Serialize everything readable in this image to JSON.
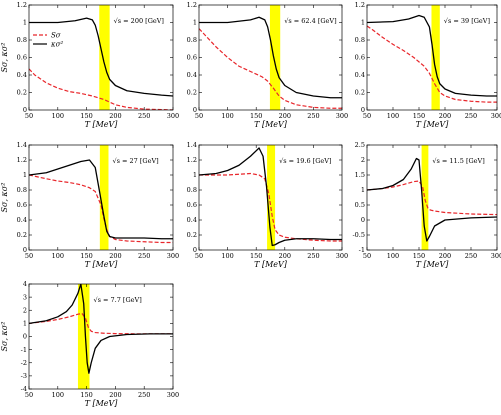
{
  "colors": {
    "band": "#ffff00",
    "s_sigma": "#e8262b",
    "kappa_sigma2": "#000000"
  },
  "legend": {
    "s_sigma": "Sσ",
    "kappa_sigma2": "κσ²"
  },
  "chart_data": [
    {
      "type": "line",
      "annotation": "√s = 200 [GeV]",
      "xlabel": "T [MeV]",
      "ylabel": "Sσ, κσ²",
      "xlim": [
        50,
        300
      ],
      "ylim": [
        0,
        1.2
      ],
      "xticks": [
        50,
        100,
        150,
        200,
        250,
        300
      ],
      "yticks": [
        0,
        0.2,
        0.4,
        0.6,
        0.8,
        1,
        1.2
      ],
      "band": [
        172,
        190
      ],
      "legend_position": "top-left",
      "series": [
        {
          "name": "Sσ",
          "key": "s_sigma",
          "style": "dashed",
          "x": [
            50,
            60,
            80,
            100,
            120,
            140,
            160,
            170,
            180,
            190,
            200,
            220,
            250,
            280,
            300
          ],
          "y": [
            0.47,
            0.4,
            0.31,
            0.25,
            0.21,
            0.19,
            0.16,
            0.14,
            0.12,
            0.09,
            0.06,
            0.03,
            0.01,
            0.005,
            0.0
          ]
        },
        {
          "name": "κσ²",
          "key": "kappa_sigma2",
          "style": "solid",
          "x": [
            50,
            100,
            130,
            150,
            160,
            165,
            170,
            175,
            180,
            185,
            190,
            200,
            220,
            250,
            280,
            300
          ],
          "y": [
            1.0,
            1.0,
            1.02,
            1.05,
            1.03,
            0.97,
            0.85,
            0.7,
            0.55,
            0.43,
            0.35,
            0.28,
            0.22,
            0.19,
            0.17,
            0.16
          ]
        }
      ]
    },
    {
      "type": "line",
      "annotation": "√s = 62.4 [GeV]",
      "xlabel": "T [MeV]",
      "ylabel": "",
      "xlim": [
        50,
        300
      ],
      "ylim": [
        0,
        1.2
      ],
      "xticks": [
        50,
        100,
        150,
        200,
        250,
        300
      ],
      "yticks": [
        0,
        0.2,
        0.4,
        0.6,
        0.8,
        1,
        1.2
      ],
      "band": [
        174,
        192
      ],
      "series": [
        {
          "name": "Sσ",
          "key": "s_sigma",
          "style": "dashed",
          "x": [
            50,
            60,
            80,
            100,
            120,
            140,
            160,
            170,
            180,
            190,
            200,
            220,
            250,
            280,
            300
          ],
          "y": [
            0.93,
            0.86,
            0.72,
            0.6,
            0.5,
            0.44,
            0.38,
            0.33,
            0.25,
            0.16,
            0.11,
            0.06,
            0.03,
            0.02,
            0.02
          ]
        },
        {
          "name": "κσ²",
          "key": "kappa_sigma2",
          "style": "solid",
          "x": [
            50,
            100,
            140,
            155,
            165,
            170,
            175,
            180,
            185,
            190,
            200,
            220,
            250,
            280,
            300
          ],
          "y": [
            1.0,
            1.0,
            1.03,
            1.06,
            1.03,
            0.95,
            0.8,
            0.62,
            0.47,
            0.37,
            0.28,
            0.2,
            0.16,
            0.14,
            0.14
          ]
        }
      ]
    },
    {
      "type": "line",
      "annotation": "√s = 39 [GeV]",
      "xlabel": "T [MeV]",
      "ylabel": "",
      "xlim": [
        50,
        300
      ],
      "ylim": [
        0,
        1.2
      ],
      "xticks": [
        50,
        100,
        150,
        200,
        250,
        300
      ],
      "yticks": [
        0,
        0.2,
        0.4,
        0.6,
        0.8,
        1,
        1.2
      ],
      "band": [
        174,
        190
      ],
      "series": [
        {
          "name": "Sσ",
          "key": "s_sigma",
          "style": "dashed",
          "x": [
            50,
            60,
            80,
            100,
            120,
            140,
            160,
            170,
            180,
            190,
            200,
            220,
            250,
            280,
            300
          ],
          "y": [
            0.96,
            0.92,
            0.83,
            0.75,
            0.68,
            0.6,
            0.5,
            0.42,
            0.3,
            0.2,
            0.16,
            0.12,
            0.1,
            0.09,
            0.09
          ]
        },
        {
          "name": "κσ²",
          "key": "kappa_sigma2",
          "style": "solid",
          "x": [
            50,
            100,
            130,
            150,
            160,
            170,
            175,
            180,
            185,
            190,
            200,
            220,
            250,
            280,
            300
          ],
          "y": [
            1.0,
            1.01,
            1.04,
            1.08,
            1.06,
            0.95,
            0.75,
            0.52,
            0.38,
            0.3,
            0.24,
            0.19,
            0.17,
            0.16,
            0.16
          ]
        }
      ]
    },
    {
      "type": "line",
      "annotation": "√s = 27 [GeV]",
      "xlabel": "T [MeV]",
      "ylabel": "Sσ, κσ²",
      "xlim": [
        50,
        300
      ],
      "ylim": [
        0,
        1.4
      ],
      "xticks": [
        50,
        100,
        150,
        200,
        250,
        300
      ],
      "yticks": [
        0,
        0.2,
        0.4,
        0.6,
        0.8,
        1,
        1.2,
        1.4
      ],
      "band": [
        173,
        188
      ],
      "series": [
        {
          "name": "Sσ",
          "key": "s_sigma",
          "style": "dashed",
          "x": [
            50,
            80,
            100,
            120,
            140,
            155,
            165,
            175,
            180,
            185,
            190,
            200,
            220,
            250,
            280,
            300
          ],
          "y": [
            1.0,
            0.95,
            0.92,
            0.9,
            0.87,
            0.83,
            0.78,
            0.6,
            0.42,
            0.27,
            0.18,
            0.14,
            0.12,
            0.11,
            0.1,
            0.1
          ]
        },
        {
          "name": "κσ²",
          "key": "kappa_sigma2",
          "style": "solid",
          "x": [
            50,
            80,
            100,
            120,
            140,
            155,
            165,
            172,
            180,
            185,
            190,
            200,
            220,
            250,
            280,
            300
          ],
          "y": [
            1.0,
            1.03,
            1.08,
            1.13,
            1.18,
            1.2,
            1.1,
            0.8,
            0.45,
            0.25,
            0.18,
            0.16,
            0.16,
            0.16,
            0.15,
            0.15
          ]
        }
      ]
    },
    {
      "type": "line",
      "annotation": "√s = 19.6 [GeV]",
      "xlabel": "T [MeV]",
      "ylabel": "",
      "xlim": [
        50,
        300
      ],
      "ylim": [
        0,
        1.4
      ],
      "xticks": [
        50,
        100,
        150,
        200,
        250,
        300
      ],
      "yticks": [
        0,
        0.2,
        0.4,
        0.6,
        0.8,
        1,
        1.2,
        1.4
      ],
      "band": [
        169,
        183
      ],
      "series": [
        {
          "name": "Sσ",
          "key": "s_sigma",
          "style": "dashed",
          "x": [
            50,
            80,
            100,
            120,
            140,
            155,
            165,
            172,
            178,
            183,
            190,
            200,
            220,
            250,
            280,
            300
          ],
          "y": [
            1.0,
            1.0,
            1.0,
            1.01,
            1.02,
            1.0,
            0.95,
            0.75,
            0.45,
            0.27,
            0.2,
            0.17,
            0.15,
            0.13,
            0.12,
            0.12
          ]
        },
        {
          "name": "κσ²",
          "key": "kappa_sigma2",
          "style": "solid",
          "x": [
            50,
            80,
            100,
            120,
            140,
            155,
            162,
            168,
            174,
            178,
            183,
            190,
            200,
            220,
            250,
            280,
            300
          ],
          "y": [
            1.0,
            1.02,
            1.06,
            1.13,
            1.25,
            1.36,
            1.25,
            0.85,
            0.3,
            0.06,
            0.07,
            0.1,
            0.13,
            0.15,
            0.15,
            0.14,
            0.14
          ]
        }
      ]
    },
    {
      "type": "line",
      "annotation": "√s = 11.5 [GeV]",
      "xlabel": "T [MeV]",
      "ylabel": "",
      "xlim": [
        50,
        300
      ],
      "ylim": [
        -1,
        2.5
      ],
      "xticks": [
        50,
        100,
        150,
        200,
        250,
        300
      ],
      "yticks": [
        -1,
        -0.5,
        0,
        0.5,
        1,
        1.5,
        2,
        2.5
      ],
      "band": [
        155,
        168
      ],
      "series": [
        {
          "name": "Sσ",
          "key": "s_sigma",
          "style": "dashed",
          "x": [
            50,
            80,
            100,
            120,
            140,
            150,
            157,
            162,
            167,
            172,
            180,
            200,
            250,
            300
          ],
          "y": [
            1.0,
            1.05,
            1.1,
            1.18,
            1.28,
            1.3,
            1.1,
            0.65,
            0.4,
            0.33,
            0.3,
            0.25,
            0.2,
            0.18
          ]
        },
        {
          "name": "κσ²",
          "key": "kappa_sigma2",
          "style": "solid",
          "x": [
            50,
            80,
            100,
            120,
            135,
            145,
            150,
            155,
            160,
            165,
            170,
            180,
            200,
            250,
            300
          ],
          "y": [
            1.0,
            1.05,
            1.15,
            1.35,
            1.7,
            2.05,
            2.0,
            1.0,
            -0.2,
            -0.7,
            -0.55,
            -0.2,
            0.0,
            0.07,
            0.1
          ]
        }
      ]
    },
    {
      "type": "line",
      "annotation": "√s = 7.7 [GeV]",
      "xlabel": "T [MeV]",
      "ylabel": "Sσ, κσ²",
      "xlim": [
        50,
        300
      ],
      "ylim": [
        -4,
        4
      ],
      "xticks": [
        50,
        100,
        150,
        200,
        250,
        300
      ],
      "yticks": [
        -4,
        -3,
        -2,
        -1,
        0,
        1,
        2,
        3,
        4
      ],
      "band": [
        135,
        155
      ],
      "series": [
        {
          "name": "Sσ",
          "key": "s_sigma",
          "style": "dashed",
          "x": [
            50,
            80,
            100,
            120,
            135,
            142,
            148,
            153,
            158,
            165,
            180,
            200,
            250,
            300
          ],
          "y": [
            1.0,
            1.15,
            1.3,
            1.5,
            1.7,
            1.75,
            1.4,
            0.7,
            0.4,
            0.3,
            0.25,
            0.22,
            0.2,
            0.2
          ]
        },
        {
          "name": "κσ²",
          "key": "kappa_sigma2",
          "style": "solid",
          "x": [
            50,
            80,
            100,
            115,
            125,
            135,
            140,
            145,
            148,
            151,
            154,
            158,
            165,
            175,
            190,
            220,
            260,
            300
          ],
          "y": [
            1.0,
            1.2,
            1.5,
            1.9,
            2.4,
            3.3,
            4.0,
            2.5,
            0.0,
            -2.0,
            -2.8,
            -2.0,
            -0.9,
            -0.3,
            0.0,
            0.15,
            0.2,
            0.2
          ]
        }
      ]
    }
  ]
}
